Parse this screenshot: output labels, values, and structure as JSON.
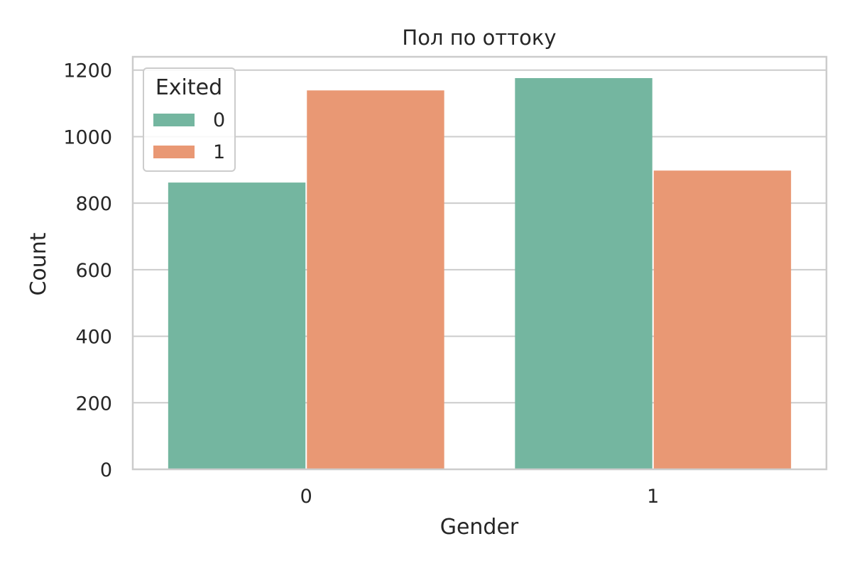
{
  "chart_data": {
    "type": "bar",
    "title": "Пол по оттоку",
    "xlabel": "Gender",
    "ylabel": "Count",
    "categories": [
      "0",
      "1"
    ],
    "ylim": [
      0,
      1240
    ],
    "yticks": [
      0,
      200,
      400,
      600,
      800,
      1000,
      1200
    ],
    "grid": true,
    "legend": {
      "title": "Exited",
      "position": "top-left"
    },
    "series": [
      {
        "name": "0",
        "color": "#74b6a0",
        "values": [
          862,
          1176
        ]
      },
      {
        "name": "1",
        "color": "#e99874",
        "values": [
          1139,
          898
        ]
      }
    ]
  }
}
